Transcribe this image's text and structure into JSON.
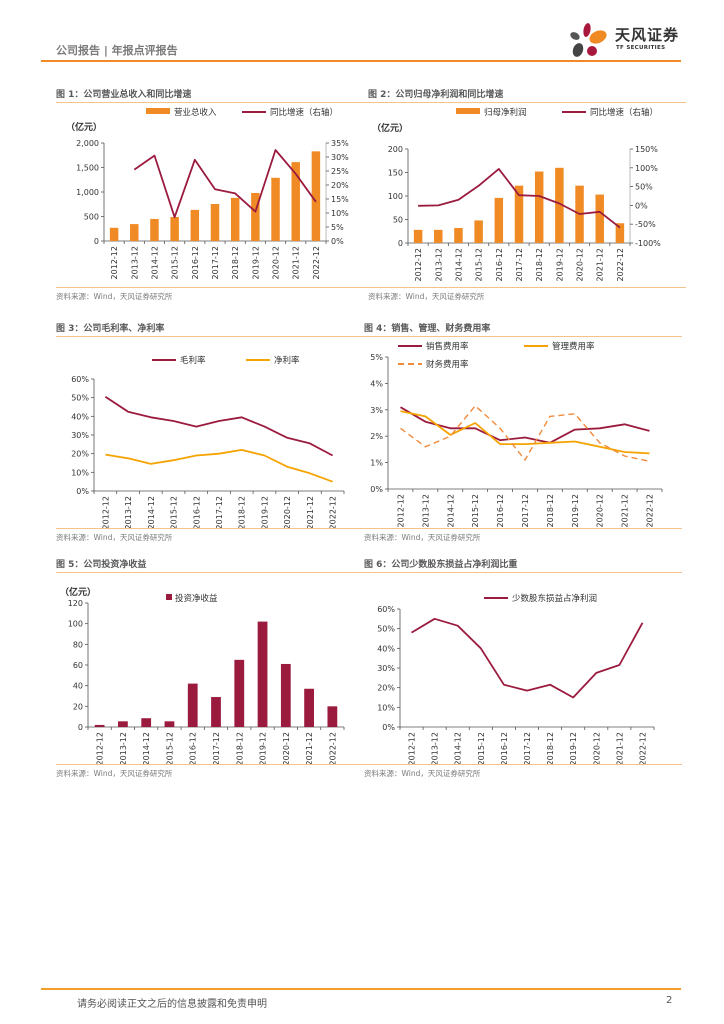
{
  "header": {
    "title": "公司报告 | 年报点评报告",
    "logo_cn": "天风证券",
    "logo_en": "TF SECURITIES",
    "colors": {
      "accent": "#f08a24"
    }
  },
  "footer": {
    "disclaimer": "请务必阅读正文之后的信息披露和免责申明",
    "page": "2"
  },
  "source_text": "资料来源：Wind，天风证券研究所",
  "figures": [
    {
      "title": "图 1：公司营业总收入和同比增速"
    },
    {
      "title": "图 2：公司归母净利润和同比增速"
    },
    {
      "title": "图 3：公司毛利率、净利率"
    },
    {
      "title": "图 4：销售、管理、财务费用率"
    },
    {
      "title": "图 5：公司投资净收益"
    },
    {
      "title": "图 6：公司少数股东损益占净利润比重"
    }
  ],
  "chart_data": [
    {
      "type": "bar",
      "title": "图 1：公司营业总收入和同比增速",
      "ylabel": "（亿元）",
      "categories": [
        "2012-12",
        "2013-12",
        "2014-12",
        "2015-12",
        "2016-12",
        "2017-12",
        "2018-12",
        "2019-12",
        "2020-12",
        "2021-12",
        "2022-12"
      ],
      "series": [
        {
          "name": "营业总收入",
          "kind": "bar",
          "axis": "left",
          "color": "#f08a24",
          "values": [
            270,
            345,
            450,
            490,
            635,
            755,
            880,
            980,
            1290,
            1610,
            1830
          ]
        },
        {
          "name": "同比增速（右轴）",
          "kind": "line",
          "axis": "right",
          "color": "#9b1b3f",
          "values": [
            null,
            25.5,
            30.5,
            8.5,
            29,
            18.5,
            17,
            10.5,
            32.5,
            24,
            14
          ]
        }
      ],
      "ylim": [
        0,
        2000
      ],
      "yticks": [
        0,
        500,
        1000,
        1500,
        2000
      ],
      "ytick_labels": [
        "0",
        "500",
        "1,000",
        "1,500",
        "2,000"
      ],
      "y2lim": [
        0,
        35
      ],
      "y2ticks": [
        0,
        5,
        10,
        15,
        20,
        25,
        30,
        35
      ],
      "y2tick_labels": [
        "0%",
        "5%",
        "10%",
        "15%",
        "20%",
        "25%",
        "30%",
        "35%"
      ],
      "legend": "top",
      "grid": false
    },
    {
      "type": "bar",
      "title": "图 2：公司归母净利润和同比增速",
      "ylabel": "（亿元）",
      "categories": [
        "2012-12",
        "2013-12",
        "2014-12",
        "2015-12",
        "2016-12",
        "2017-12",
        "2018-12",
        "2019-12",
        "2020-12",
        "2021-12",
        "2022-12"
      ],
      "series": [
        {
          "name": "归母净利润",
          "kind": "bar",
          "axis": "left",
          "color": "#f08a24",
          "values": [
            28,
            28,
            32,
            48,
            96,
            122,
            152,
            160,
            122,
            103,
            42
          ]
        },
        {
          "name": "同比增速（右轴）",
          "kind": "line",
          "axis": "right",
          "color": "#9b1b3f",
          "values": [
            -1,
            0,
            15,
            52,
            97,
            27,
            25,
            5,
            -23,
            -17,
            -59
          ]
        }
      ],
      "ylim": [
        0,
        200
      ],
      "yticks": [
        0,
        50,
        100,
        150,
        200
      ],
      "ytick_labels": [
        "0",
        "50",
        "100",
        "150",
        "200"
      ],
      "y2lim": [
        -100,
        150
      ],
      "y2ticks": [
        -100,
        -50,
        0,
        50,
        100,
        150
      ],
      "y2tick_labels": [
        "-100%",
        "-50%",
        "0%",
        "50%",
        "100%",
        "150%"
      ],
      "legend": "top",
      "grid": false
    },
    {
      "type": "line",
      "title": "图 3：公司毛利率、净利率",
      "categories": [
        "2012-12",
        "2013-12",
        "2014-12",
        "2015-12",
        "2016-12",
        "2017-12",
        "2018-12",
        "2019-12",
        "2020-12",
        "2021-12",
        "2022-12"
      ],
      "series": [
        {
          "name": "毛利率",
          "color": "#9b1b3f",
          "dash": false,
          "values": [
            50.5,
            42.5,
            39.5,
            37.5,
            34.5,
            37.5,
            39.5,
            34.5,
            28.5,
            25.5,
            19
          ]
        },
        {
          "name": "净利率",
          "color": "#f5a300",
          "dash": false,
          "values": [
            19.5,
            17.5,
            14.5,
            16.5,
            19,
            20,
            22,
            19,
            13,
            9.5,
            5
          ]
        }
      ],
      "ylim": [
        0,
        60
      ],
      "yticks": [
        0,
        10,
        20,
        30,
        40,
        50,
        60
      ],
      "ytick_labels": [
        "0%",
        "10%",
        "20%",
        "30%",
        "40%",
        "50%",
        "60%"
      ],
      "legend": "top",
      "grid": false
    },
    {
      "type": "line",
      "title": "图 4：销售、管理、财务费用率",
      "categories": [
        "2012-12",
        "2013-12",
        "2014-12",
        "2015-12",
        "2016-12",
        "2017-12",
        "2018-12",
        "2019-12",
        "2020-12",
        "2021-12",
        "2022-12"
      ],
      "series": [
        {
          "name": "销售费用率",
          "color": "#9b1b3f",
          "dash": false,
          "values": [
            3.1,
            2.55,
            2.3,
            2.3,
            1.85,
            1.95,
            1.75,
            2.25,
            2.3,
            2.45,
            2.2
          ]
        },
        {
          "name": "管理费用率",
          "color": "#f5a300",
          "dash": false,
          "values": [
            2.95,
            2.75,
            2.05,
            2.5,
            1.7,
            1.7,
            1.75,
            1.8,
            1.6,
            1.4,
            1.35
          ]
        },
        {
          "name": "财务费用率",
          "color": "#f08a3c",
          "dash": true,
          "values": [
            2.3,
            1.6,
            2.0,
            3.15,
            2.3,
            1.1,
            2.75,
            2.85,
            1.75,
            1.25,
            1.05
          ]
        }
      ],
      "ylim": [
        0,
        5
      ],
      "yticks": [
        0,
        1,
        2,
        3,
        4,
        5
      ],
      "ytick_labels": [
        "0%",
        "1%",
        "2%",
        "3%",
        "4%",
        "5%"
      ],
      "legend": "top",
      "grid": false
    },
    {
      "type": "bar",
      "title": "图 5：公司投资净收益",
      "ylabel": "（亿元）",
      "categories": [
        "2012-12",
        "2013-12",
        "2014-12",
        "2015-12",
        "2016-12",
        "2017-12",
        "2018-12",
        "2019-12",
        "2020-12",
        "2021-12",
        "2022-12"
      ],
      "series": [
        {
          "name": "投资净收益",
          "kind": "bar",
          "axis": "left",
          "color": "#9b1b3f",
          "values": [
            2,
            5.5,
            8.5,
            5.5,
            42,
            29,
            65,
            102,
            61,
            37,
            20
          ]
        }
      ],
      "ylim": [
        0,
        120
      ],
      "yticks": [
        0,
        20,
        40,
        60,
        80,
        100,
        120
      ],
      "ytick_labels": [
        "0",
        "20",
        "40",
        "60",
        "80",
        "100",
        "120"
      ],
      "legend": "top",
      "grid": false
    },
    {
      "type": "line",
      "title": "图 6：公司少数股东损益占净利润比重",
      "categories": [
        "2012-12",
        "2013-12",
        "2014-12",
        "2015-12",
        "2016-12",
        "2017-12",
        "2018-12",
        "2019-12",
        "2020-12",
        "2021-12",
        "2022-12"
      ],
      "series": [
        {
          "name": "少数股东损益占净利润",
          "color": "#9b1b3f",
          "dash": false,
          "values": [
            48,
            55,
            51.5,
            40,
            21.5,
            18.5,
            21.5,
            15,
            27.5,
            31.5,
            53
          ]
        }
      ],
      "ylim": [
        0,
        60
      ],
      "yticks": [
        0,
        10,
        20,
        30,
        40,
        50,
        60
      ],
      "ytick_labels": [
        "0%",
        "10%",
        "20%",
        "30%",
        "40%",
        "50%",
        "60%"
      ],
      "legend": "top",
      "grid": false
    }
  ]
}
